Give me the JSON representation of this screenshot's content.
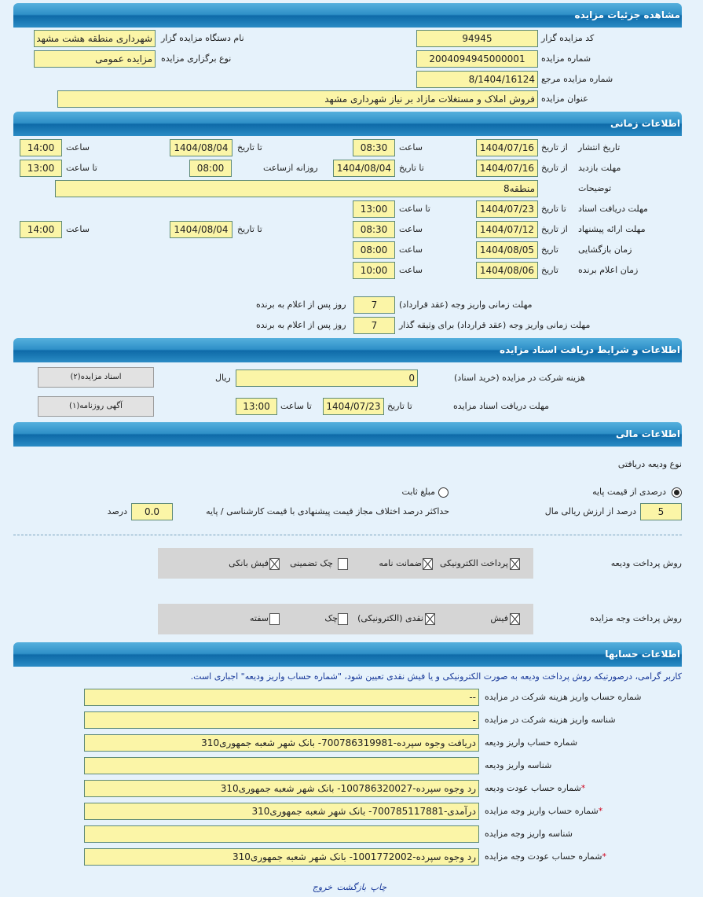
{
  "sections": {
    "details": "مشاهده جزئیات مزایده",
    "time": "اطلاعات زمانی",
    "docs": "اطلاعات و شرایط دریافت اسناد مزایده",
    "finance": "اطلاعات مالی",
    "accounts": "اطلاعات حسابها"
  },
  "details": {
    "code_label": "کد مزایده گزار",
    "code": "94945",
    "org_label": "نام دستگاه مزایده گزار",
    "org": "شهرداری منطقه هشت مشهد",
    "number_label": "شماره مزایده",
    "number": "2004094945000001",
    "type_label": "نوع برگزاری مزایده",
    "type": "مزایده عمومی",
    "ref_label": "شماره مزایده مرجع",
    "ref": "8/1404/16124",
    "title_label": "عنوان مزایده",
    "title": "فروش املاک و مستغلات مازاد بر نیاز شهرداری مشهد"
  },
  "time": {
    "publish": {
      "label": "تاریخ انتشار",
      "from_label": "از تاریخ",
      "from_date": "1404/07/16",
      "time_label": "ساعت",
      "from_time": "08:30",
      "to_label": "تا تاریخ",
      "to_date": "1404/08/04",
      "to_time_label": "ساعت",
      "to_time": "14:00"
    },
    "visit": {
      "label": "مهلت بازدید",
      "from_label": "از تاریخ",
      "from_date": "1404/07/16",
      "to_label": "تا تاریخ",
      "to_date": "1404/08/04",
      "daily_label": "روزانه ازساعت",
      "daily_from": "08:00",
      "to_time_label": "تا ساعت",
      "to_time": "13:00"
    },
    "notes_label": "توضیحات",
    "notes": "منطقه8",
    "docs": {
      "label": "مهلت دریافت اسناد",
      "to_label": "تا تاریخ",
      "to_date": "1404/07/23",
      "time_label": "تا ساعت",
      "time": "13:00"
    },
    "offer": {
      "label": "مهلت ارائه پیشنهاد",
      "from_label": "از تاریخ",
      "from_date": "1404/07/12",
      "time_label": "ساعت",
      "from_time": "08:30",
      "to_label": "تا تاریخ",
      "to_date": "1404/08/04",
      "to_time_label": "ساعت",
      "to_time": "14:00"
    },
    "opening": {
      "label": "زمان بازگشایی",
      "date_label": "تاریخ",
      "date": "1404/08/05",
      "time_label": "ساعت",
      "time": "08:00"
    },
    "winner": {
      "label": "زمان اعلام برنده",
      "date_label": "تاریخ",
      "date": "1404/08/06",
      "time_label": "ساعت",
      "time": "10:00"
    },
    "pay_label": "مهلت زمانی واریز وجه (عقد قرارداد)",
    "pay_days": "7",
    "pay_suffix": "روز پس از اعلام به برنده",
    "pay2_label": "مهلت زمانی واریز وجه (عقد قرارداد) برای وثیقه گذار",
    "pay2_days": "7",
    "pay2_suffix": "روز پس از اعلام به برنده"
  },
  "docs": {
    "fee_label": "هزینه شرکت در مزایده (خرید اسناد)",
    "fee": "0",
    "currency": "ریال",
    "deadline_label": "مهلت دریافت اسناد مزایده",
    "to_label": "تا تاریخ",
    "to_date": "1404/07/23",
    "time_label": "تا ساعت",
    "time": "13:00",
    "btn_docs": "اسناد مزایده(۲)",
    "btn_ad": "آگهی روزنامه(۱)"
  },
  "finance": {
    "deposit_type_label": "نوع ودیعه دریافتی",
    "radio_percent": "درصدی از قیمت پایه",
    "radio_fixed": "مبلغ ثابت",
    "selected": "درصدی از قیمت پایه",
    "percent": "5",
    "percent_suffix": "درصد از ارزش ریالی مال",
    "max_diff_label": "حداکثر درصد اختلاف مجاز قیمت پیشنهادی با قیمت کارشناسی / پایه",
    "max_diff": "0.0",
    "max_diff_suffix": "درصد",
    "deposit_methods_label": "روش پرداخت ودیعه",
    "deposit_methods": [
      {
        "label": "پرداخت الکترونیکی",
        "checked": true
      },
      {
        "label": "ضمانت نامه",
        "checked": true
      },
      {
        "label": "چک تضمینی",
        "checked": false
      },
      {
        "label": "فیش بانکی",
        "checked": true
      }
    ],
    "payment_methods_label": "روش پرداخت وجه مزایده",
    "payment_methods": [
      {
        "label": "فیش",
        "checked": true
      },
      {
        "label": "نقدی (الکترونیکی)",
        "checked": true
      },
      {
        "label": "چک",
        "checked": false
      },
      {
        "label": "سفته",
        "checked": false
      }
    ]
  },
  "accounts": {
    "note": "کاربر گرامی، درصورتیکه روش پرداخت ودیعه به صورت الکترونیکی و یا فیش نقدی تعیین شود، \"شماره حساب واریز ودیعه\" اجباری است.",
    "rows": [
      {
        "label": "شماره حساب واریز هزینه شرکت در مزایده",
        "value": "--",
        "required": false
      },
      {
        "label": "شناسه واریز هزینه شرکت در مزایده",
        "value": "-",
        "required": false
      },
      {
        "label": "شماره حساب واریز ودیعه",
        "value": "دریافت وجوه سپرده-700786319981- بانک شهر شعبه جمهوری310",
        "required": false
      },
      {
        "label": "شناسه واریز ودیعه",
        "value": "",
        "required": false
      },
      {
        "label": "شماره حساب عودت ودیعه",
        "value": "رد وجوه سپرده-100786320027- بانک شهر شعبه جمهوری310",
        "required": true
      },
      {
        "label": "شماره حساب واریز وجه مزایده",
        "value": "درآمدی-700785117881- بانک شهر شعبه جمهوری310",
        "required": true
      },
      {
        "label": "شناسه واریز وجه مزایده",
        "value": "",
        "required": false
      },
      {
        "label": "شماره حساب عودت وجه مزایده",
        "value": "رد وجوه سپرده-1001772002- بانک شهر شعبه جمهوری310",
        "required": true
      }
    ],
    "required_mark": "*"
  },
  "footer": {
    "print": "چاپ",
    "back": "بازگشت",
    "exit": "خروج"
  }
}
